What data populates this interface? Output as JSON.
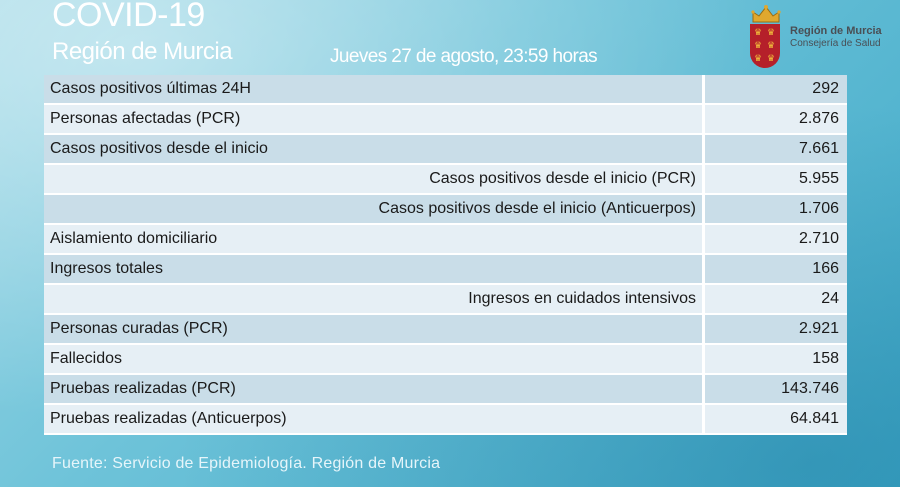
{
  "header": {
    "title": "COVID-19",
    "subtitle": "Región de Murcia",
    "date": "Jueves 27 de agosto, 23:59 horas"
  },
  "logo": {
    "title": "Región de Murcia",
    "subtitle": "Consejería de Salud",
    "icon": "coat-of-arms"
  },
  "table": {
    "rows": [
      {
        "label": "Casos positivos últimas 24H",
        "value": "292",
        "indent": false
      },
      {
        "label": "Personas afectadas (PCR)",
        "value": "2.876",
        "indent": false
      },
      {
        "label": "Casos positivos desde el inicio",
        "value": "7.661",
        "indent": false
      },
      {
        "label": "Casos positivos desde el inicio (PCR)",
        "value": "5.955",
        "indent": true
      },
      {
        "label": "Casos positivos desde el inicio (Anticuerpos)",
        "value": "1.706",
        "indent": true
      },
      {
        "label": "Aislamiento domiciliario",
        "value": "2.710",
        "indent": false
      },
      {
        "label": "Ingresos totales",
        "value": "166",
        "indent": false
      },
      {
        "label": "Ingresos en cuidados intensivos",
        "value": "24",
        "indent": true
      },
      {
        "label": "Personas curadas (PCR)",
        "value": "2.921",
        "indent": false
      },
      {
        "label": "Fallecidos",
        "value": "158",
        "indent": false
      },
      {
        "label": "Pruebas realizadas (PCR)",
        "value": "143.746",
        "indent": false
      },
      {
        "label": "Pruebas realizadas (Anticuerpos)",
        "value": "64.841",
        "indent": false
      }
    ]
  },
  "footer": {
    "source": "Fuente: Servicio de Epidemiología. Región de Murcia"
  }
}
